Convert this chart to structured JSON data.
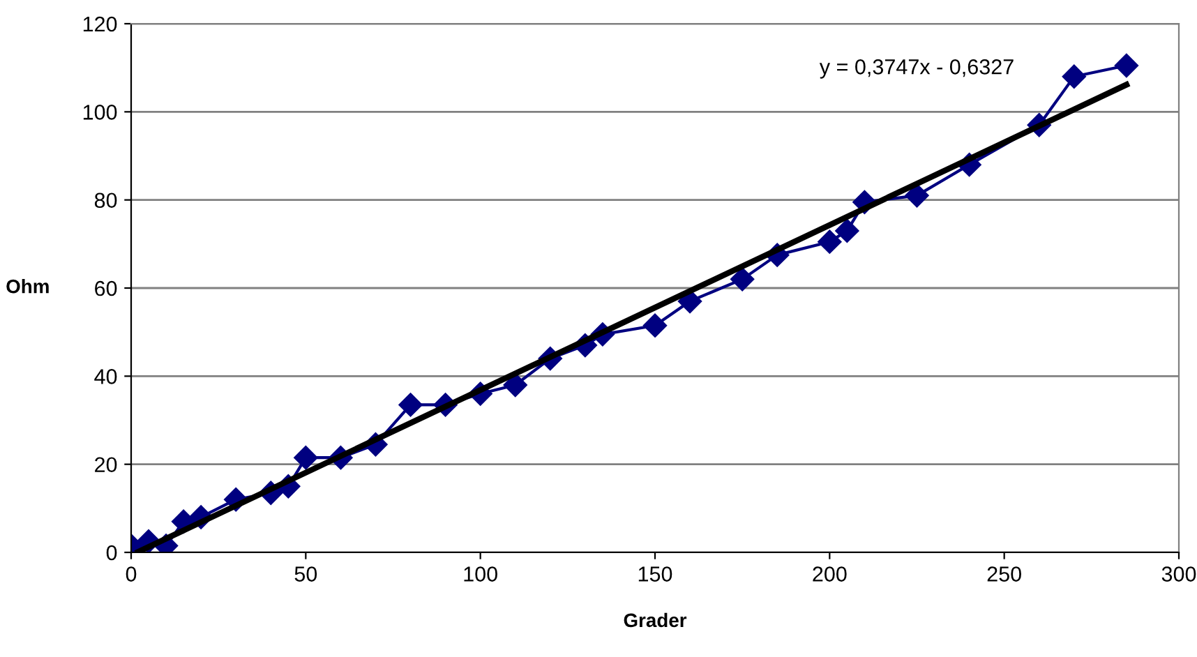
{
  "chart_data": {
    "type": "line",
    "xlabel": "Grader",
    "ylabel": "Ohm",
    "x": [
      0,
      5,
      10,
      15,
      20,
      30,
      40,
      45,
      50,
      60,
      70,
      80,
      90,
      100,
      110,
      120,
      130,
      135,
      150,
      160,
      175,
      185,
      200,
      205,
      210,
      225,
      240,
      260,
      270,
      285
    ],
    "series": [
      {
        "color": "#000080",
        "marker": "diamond",
        "values": [
          1.5,
          2.5,
          1.5,
          7,
          8,
          12,
          13.5,
          15,
          21.5,
          21.5,
          24.5,
          33.5,
          33.5,
          36,
          38,
          44,
          47,
          49.5,
          51.5,
          57,
          62,
          67.5,
          70.5,
          73,
          79.5,
          81,
          88,
          97,
          108,
          110.5
        ]
      },
      {
        "color": "#000000",
        "marker": "none",
        "x": [
          2,
          285
        ],
        "values": [
          0.12,
          106.16
        ]
      }
    ],
    "annotations": [
      "y = 0,3747x - 0,6327"
    ],
    "xlim": [
      0,
      300
    ],
    "xticks": [
      0,
      50,
      100,
      150,
      200,
      250,
      300
    ],
    "ylim": [
      0,
      120
    ],
    "yticks": [
      0,
      20,
      40,
      60,
      80,
      100,
      120
    ],
    "grid": "y",
    "legend": false
  }
}
